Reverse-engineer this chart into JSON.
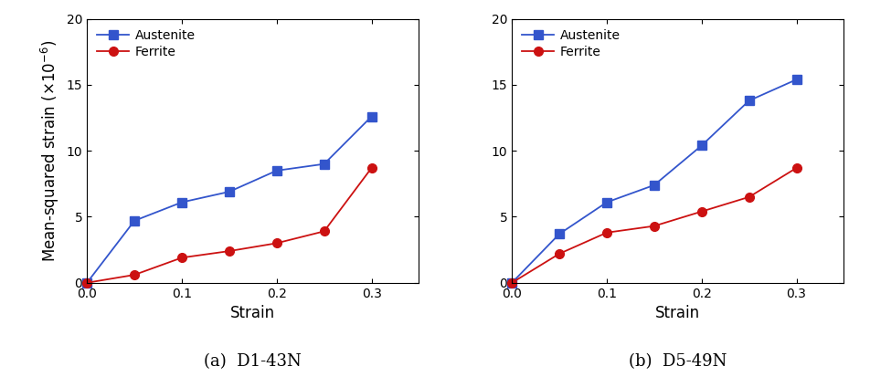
{
  "panel_a": {
    "title": "(a)  D1-43N",
    "austenite_x": [
      0.0,
      0.05,
      0.1,
      0.15,
      0.2,
      0.25,
      0.3
    ],
    "austenite_y": [
      0.0,
      4.7,
      6.1,
      6.9,
      8.5,
      9.0,
      12.6
    ],
    "ferrite_x": [
      0.0,
      0.05,
      0.1,
      0.15,
      0.2,
      0.25,
      0.3
    ],
    "ferrite_y": [
      0.0,
      0.6,
      1.9,
      2.4,
      3.0,
      3.9,
      8.7
    ]
  },
  "panel_b": {
    "title": "(b)  D5-49N",
    "austenite_x": [
      0.0,
      0.05,
      0.1,
      0.15,
      0.2,
      0.25,
      0.3
    ],
    "austenite_y": [
      0.0,
      3.7,
      6.1,
      7.4,
      10.4,
      13.8,
      15.4
    ],
    "ferrite_x": [
      0.0,
      0.05,
      0.1,
      0.15,
      0.2,
      0.25,
      0.3
    ],
    "ferrite_y": [
      0.0,
      2.2,
      3.8,
      4.3,
      5.4,
      6.5,
      8.7
    ]
  },
  "austenite_color": "#3355cc",
  "ferrite_color": "#cc1111",
  "austenite_label": "Austenite",
  "ferrite_label": "Ferrite",
  "xlabel": "Strain",
  "ylabel": "Mean-squared strain ($\\times$10$^{-6}$)",
  "xlim": [
    0.0,
    0.35
  ],
  "ylim": [
    -0.5,
    20
  ],
  "ylim_display": [
    0,
    20
  ],
  "yticks": [
    0,
    5,
    10,
    15,
    20
  ],
  "xticks": [
    0.0,
    0.1,
    0.2,
    0.3
  ],
  "marker_austenite": "s",
  "marker_ferrite": "o",
  "markersize": 7,
  "linewidth": 1.3,
  "legend_fontsize": 10,
  "axis_label_fontsize": 12,
  "tick_fontsize": 10,
  "caption_fontsize": 13
}
